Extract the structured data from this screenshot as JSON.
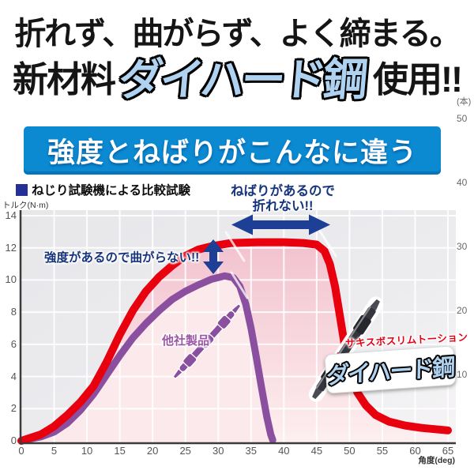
{
  "header": {
    "line1": "折れず、曲がらず、よく締まる。",
    "line2_prefix": "新材料",
    "logo": "ダイハード鋼",
    "line2_suffix": "使用!!"
  },
  "banner": {
    "text": "強度とねばりがこんなに違う",
    "bg_color": "#0b8ad2"
  },
  "legend": {
    "text": "ねじり試験機による比較試験",
    "square_color": "#243095"
  },
  "right_axis": {
    "unit": "(本)",
    "ticks": [
      "50",
      "40",
      "30",
      "20",
      "10"
    ]
  },
  "product": {
    "competitor_label": "他社製品",
    "sub_label": "サキスボスリムトーション",
    "logo": "ダイハード鋼"
  },
  "chart_data": {
    "type": "line",
    "title": "ねじり試験機による比較試験",
    "xlabel": "角度(deg)",
    "ylabel": "トルク(N·m)",
    "xlim": [
      0,
      65
    ],
    "ylim": [
      0,
      14
    ],
    "x_ticks": [
      0,
      5,
      10,
      15,
      20,
      25,
      30,
      35,
      40,
      45,
      50,
      55,
      60,
      65
    ],
    "y_ticks": [
      0,
      2,
      4,
      6,
      8,
      10,
      12,
      14
    ],
    "grid": true,
    "annotations": {
      "tenacity": {
        "line1": "ねばりがあるので",
        "line2": "折れない!!"
      },
      "strength": "強度があるので曲がらない!!"
    },
    "series": [
      {
        "name": "ダイハード鋼",
        "color": "#e8000f",
        "fill": "#f3c6d1",
        "points": [
          [
            0,
            0
          ],
          [
            3,
            0.4
          ],
          [
            5,
            0.9
          ],
          [
            7,
            1.6
          ],
          [
            9,
            2.4
          ],
          [
            11,
            3.4
          ],
          [
            13,
            4.9
          ],
          [
            15,
            6.6
          ],
          [
            17,
            8.1
          ],
          [
            19,
            9.3
          ],
          [
            21,
            10.2
          ],
          [
            23,
            10.9
          ],
          [
            25,
            11.5
          ],
          [
            27,
            11.9
          ],
          [
            29,
            12.1
          ],
          [
            32,
            12.3
          ],
          [
            36,
            12.35
          ],
          [
            40,
            12.35
          ],
          [
            43,
            12.3
          ],
          [
            45,
            12.2
          ],
          [
            46.2,
            11.8
          ],
          [
            47,
            11.0
          ],
          [
            47.8,
            9.6
          ],
          [
            48.6,
            7.6
          ],
          [
            49.4,
            5.6
          ],
          [
            50.2,
            4.1
          ],
          [
            51.2,
            3.0
          ],
          [
            52.5,
            2.2
          ],
          [
            54,
            1.6
          ],
          [
            56,
            1.2
          ],
          [
            58.5,
            0.95
          ],
          [
            61,
            0.8
          ],
          [
            65,
            0.65
          ]
        ]
      },
      {
        "name": "他社製品",
        "color": "#8a4f9e",
        "fill": "#fbe9eb",
        "points": [
          [
            0,
            0
          ],
          [
            3,
            0.25
          ],
          [
            5,
            0.55
          ],
          [
            7,
            1.1
          ],
          [
            9,
            1.9
          ],
          [
            11,
            2.9
          ],
          [
            13,
            4.1
          ],
          [
            15,
            5.3
          ],
          [
            17,
            6.4
          ],
          [
            19,
            7.3
          ],
          [
            21,
            8.1
          ],
          [
            23,
            8.8
          ],
          [
            25,
            9.3
          ],
          [
            27,
            9.7
          ],
          [
            29,
            10.05
          ],
          [
            31,
            10.25
          ],
          [
            32.3,
            10.15
          ],
          [
            33.3,
            9.6
          ],
          [
            34.2,
            8.5
          ],
          [
            35,
            7.0
          ],
          [
            35.8,
            5.2
          ],
          [
            36.6,
            3.3
          ],
          [
            37.4,
            1.5
          ],
          [
            38,
            0.4
          ],
          [
            38.3,
            0.05
          ]
        ]
      }
    ]
  }
}
